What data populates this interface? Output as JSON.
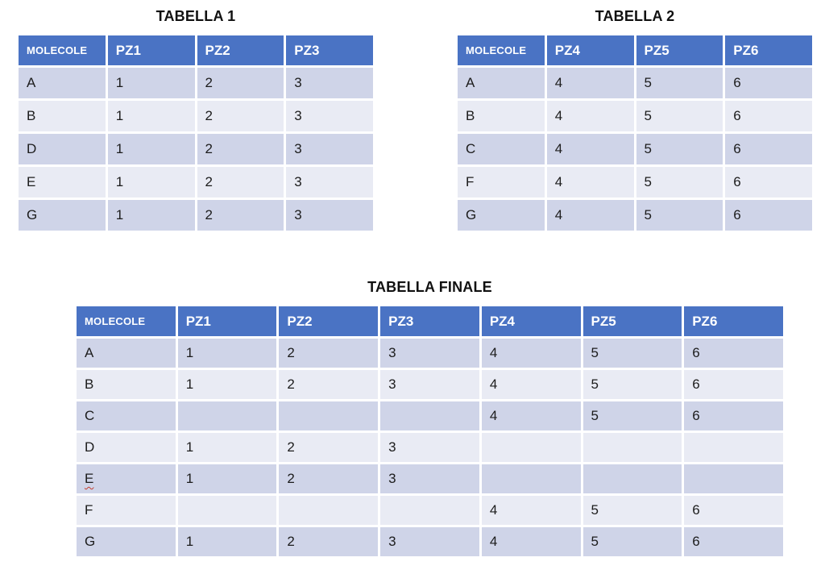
{
  "colors": {
    "header_bg": "#4a73c4",
    "row_band_dark": "#cfd4e8",
    "row_band_light": "#e9ebf4",
    "header_text": "#ffffff",
    "cell_text": "#1c1c1c",
    "spellcheck_underline": "#c43a2a"
  },
  "tables": [
    {
      "id": "tabella-1",
      "title": "TABELLA 1",
      "columns": [
        "MOLECOLE",
        "PZ1",
        "PZ2",
        "PZ3"
      ],
      "rows": [
        [
          "A",
          "1",
          "2",
          "3"
        ],
        [
          "B",
          "1",
          "2",
          "3"
        ],
        [
          "D",
          "1",
          "2",
          "3"
        ],
        [
          "E",
          "1",
          "2",
          "3"
        ],
        [
          "G",
          "1",
          "2",
          "3"
        ]
      ]
    },
    {
      "id": "tabella-2",
      "title": "TABELLA 2",
      "columns": [
        "MOLECOLE",
        "PZ4",
        "PZ5",
        "PZ6"
      ],
      "rows": [
        [
          "A",
          "4",
          "5",
          "6"
        ],
        [
          "B",
          "4",
          "5",
          "6"
        ],
        [
          "C",
          "4",
          "5",
          "6"
        ],
        [
          "F",
          "4",
          "5",
          "6"
        ],
        [
          "G",
          "4",
          "5",
          "6"
        ]
      ]
    },
    {
      "id": "tabella-finale",
      "title": "TABELLA FINALE",
      "columns": [
        "MOLECOLE",
        "PZ1",
        "PZ2",
        "PZ3",
        "PZ4",
        "PZ5",
        "PZ6"
      ],
      "rows": [
        [
          "A",
          "1",
          "2",
          "3",
          "4",
          "5",
          "6"
        ],
        [
          "B",
          "1",
          "2",
          "3",
          "4",
          "5",
          "6"
        ],
        [
          "C",
          "",
          "",
          "",
          "4",
          "5",
          "6"
        ],
        [
          "D",
          "1",
          "2",
          "3",
          "",
          "",
          ""
        ],
        [
          "E",
          "1",
          "2",
          "3",
          "",
          "",
          ""
        ],
        [
          "F",
          "",
          "",
          "",
          "4",
          "5",
          "6"
        ],
        [
          "G",
          "1",
          "2",
          "3",
          "4",
          "5",
          "6"
        ]
      ],
      "spellcheck_cell": {
        "row": 4,
        "col": 0
      }
    }
  ]
}
